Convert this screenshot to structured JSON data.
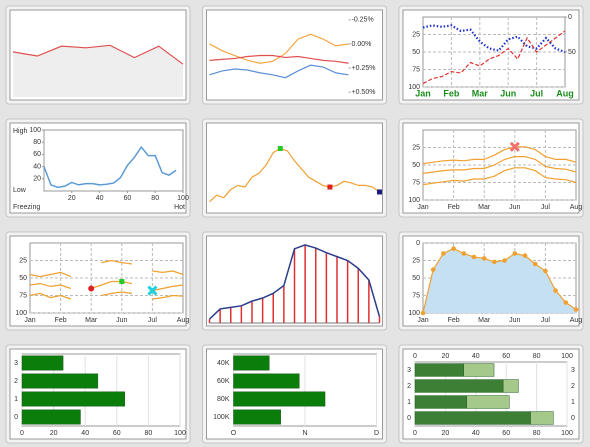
{
  "chart_data": [
    {
      "type": "line",
      "ylim": [
        0,
        100
      ],
      "series": [
        {
          "color": "#e05050",
          "fill": "#eeeeee",
          "values": [
            55,
            50,
            62,
            60,
            63,
            48,
            62,
            40
          ]
        }
      ]
    },
    {
      "type": "line",
      "reversed": true,
      "y2lim": [
        -0.3,
        0.55
      ],
      "y2ticks": [
        {
          "value": -0.25,
          "label": "-0.25%"
        },
        {
          "value": 0,
          "label": "0.00%"
        },
        {
          "value": 0.25,
          "label": "+0.25%"
        },
        {
          "value": 0.5,
          "label": "+0.50%"
        }
      ],
      "series": [
        {
          "color": "#f5a540",
          "axis": "y2",
          "values": [
            0.0,
            0.07,
            0.12,
            0.17,
            0.2,
            0.18,
            0.1,
            -0.05,
            -0.1,
            -0.05,
            0.02,
            0.0
          ]
        },
        {
          "color": "#e05050",
          "axis": "y2",
          "values": [
            0.17,
            0.16,
            0.15,
            0.13,
            0.12,
            0.12,
            0.14,
            0.13,
            0.15,
            0.17,
            0.18,
            0.2
          ]
        },
        {
          "color": "#5b8fd6",
          "axis": "y2",
          "values": [
            0.32,
            0.28,
            0.26,
            0.27,
            0.3,
            0.32,
            0.35,
            0.28,
            0.22,
            0.24,
            0.3,
            0.32
          ]
        }
      ]
    },
    {
      "type": "line",
      "reversed": true,
      "grid": true,
      "label_color": "#1a8c1a",
      "categories": [
        "Jan",
        null,
        null,
        "Feb",
        null,
        null,
        "Mar",
        null,
        null,
        "Jun",
        null,
        null,
        "Jul",
        null,
        null,
        "Aug"
      ],
      "ylim": [
        0,
        100
      ],
      "yticks": [
        25,
        50,
        75,
        100
      ],
      "y2lim": [
        0,
        100
      ],
      "y2ticks": [
        0,
        50
      ],
      "series": [
        {
          "color": "#1f2fd0",
          "dash": "dotted",
          "width": 2.2,
          "values": [
            15,
            12,
            14,
            12,
            20,
            18,
            35,
            45,
            48,
            32,
            28,
            42,
            45,
            30,
            45,
            50
          ]
        },
        {
          "color": "#e03030",
          "dash": "dashed",
          "axis": "y2",
          "values": [
            95,
            88,
            85,
            78,
            80,
            65,
            70,
            60,
            55,
            45,
            60,
            30,
            50,
            40,
            30,
            20
          ]
        }
      ]
    },
    {
      "type": "line",
      "x": [
        0,
        5,
        10,
        15,
        20,
        25,
        30,
        35,
        40,
        45,
        50,
        55,
        60,
        65,
        70,
        75,
        80,
        85,
        90,
        95
      ],
      "xlim": [
        0,
        100
      ],
      "xticks": [
        20,
        40,
        60,
        80,
        100
      ],
      "ylim": [
        0,
        100
      ],
      "yticks": [
        20,
        40,
        60,
        80,
        100
      ],
      "annotations": [
        {
          "text": "High",
          "position": "left-top"
        },
        {
          "text": "Low",
          "position": "left-bottom"
        },
        {
          "text": "Freezing",
          "position": "bottom-left"
        },
        {
          "text": "Hot",
          "position": "bottom-right"
        }
      ],
      "series": [
        {
          "color": "#5b9bd5",
          "width": 1.5,
          "values": [
            40,
            10,
            6,
            8,
            14,
            10,
            12,
            12,
            10,
            11,
            13,
            22,
            42,
            55,
            72,
            58,
            58,
            30,
            26,
            34
          ]
        }
      ]
    },
    {
      "type": "line",
      "ylim": [
        0,
        100
      ],
      "series": [
        {
          "color": "#f0a030",
          "values": [
            10,
            18,
            15,
            25,
            30,
            28,
            40,
            45,
            55,
            70,
            75,
            72,
            60,
            50,
            40,
            35,
            30,
            28,
            30,
            35,
            33,
            30,
            30,
            28,
            22
          ]
        }
      ],
      "markers": [
        {
          "series": 0,
          "index": 10,
          "color": "#22cc22",
          "shape": "square"
        },
        {
          "series": 0,
          "index": 17,
          "color": "#e02020",
          "shape": "square"
        },
        {
          "series": 0,
          "index": 24,
          "color": "#1a1a80",
          "shape": "square"
        }
      ]
    },
    {
      "type": "line",
      "reversed": true,
      "grid": true,
      "categories": [
        "Jan",
        null,
        null,
        "Feb",
        null,
        null,
        "Mar",
        null,
        null,
        "Jun",
        null,
        null,
        "Jul",
        null,
        null,
        "Aug"
      ],
      "ylim": [
        0,
        100
      ],
      "yticks": [
        25,
        50,
        75,
        100
      ],
      "series": [
        {
          "color": "#f0a030",
          "values": [
            48,
            46,
            44,
            43,
            44,
            42,
            42,
            36,
            28,
            24,
            24,
            28,
            38,
            42,
            42,
            46
          ]
        },
        {
          "color": "#f0a030",
          "values": [
            62,
            60,
            58,
            57,
            57,
            55,
            55,
            50,
            42,
            38,
            38,
            42,
            52,
            55,
            56,
            60
          ]
        },
        {
          "color": "#f0a030",
          "values": [
            78,
            76,
            74,
            72,
            73,
            70,
            70,
            66,
            58,
            54,
            54,
            58,
            68,
            70,
            71,
            75
          ]
        }
      ],
      "markers": [
        {
          "series": 0,
          "index": 9,
          "color": "#f07070",
          "shape": "x"
        }
      ]
    },
    {
      "type": "line",
      "reversed": true,
      "grid": true,
      "categories": [
        "Jan",
        null,
        null,
        "Feb",
        null,
        null,
        "Mar",
        null,
        null,
        "Jun",
        null,
        null,
        "Jul",
        null,
        null,
        "Aug"
      ],
      "ylim": [
        0,
        100
      ],
      "yticks": [
        25,
        50,
        75,
        100
      ],
      "series": [
        {
          "color": "#f0a030",
          "values": [
            45,
            48,
            45,
            42,
            48,
            null,
            null,
            28,
            25,
            28,
            30,
            null,
            40,
            42,
            40,
            45
          ]
        },
        {
          "color": "#f0a030",
          "values": [
            60,
            58,
            62,
            60,
            65,
            null,
            65,
            60,
            55,
            55,
            58,
            null,
            68,
            65,
            62,
            60
          ]
        },
        {
          "color": "#f0a030",
          "values": [
            75,
            72,
            78,
            75,
            80,
            null,
            null,
            75,
            72,
            70,
            72,
            null,
            80,
            78,
            75,
            76
          ]
        }
      ],
      "markers": [
        {
          "series": 1,
          "index": 6,
          "color": "#e02020",
          "shape": "circle"
        },
        {
          "series": 1,
          "index": 9,
          "color": "#22cc22",
          "shape": "square"
        },
        {
          "series": 1,
          "index": 12,
          "color": "#20d0e0",
          "shape": "x"
        }
      ]
    },
    {
      "type": "stem",
      "ylim": [
        0,
        105
      ],
      "stem_color": "#e03030",
      "series": [
        {
          "color": "#2c3e8c",
          "width": 1.5,
          "values": [
            5,
            18,
            20,
            22,
            28,
            32,
            38,
            48,
            95,
            100,
            96,
            90,
            85,
            80,
            70,
            55,
            8
          ]
        }
      ]
    },
    {
      "type": "line",
      "reversed": true,
      "grid": true,
      "categories": [
        "Jan",
        null,
        null,
        "Feb",
        null,
        null,
        "Mar",
        null,
        null,
        "Jun",
        null,
        null,
        "Jul",
        null,
        null,
        "Aug"
      ],
      "ylim": [
        0,
        100
      ],
      "yticks": [
        0,
        25,
        50,
        75,
        100
      ],
      "series": [
        {
          "color": "#f0a030",
          "fill": "#c5e0f2",
          "dots": true,
          "values": [
            100,
            38,
            15,
            8,
            15,
            20,
            22,
            27,
            25,
            15,
            18,
            30,
            40,
            68,
            85,
            95
          ]
        }
      ]
    },
    {
      "type": "hbar",
      "categories": [
        "3",
        "2",
        "1",
        "0"
      ],
      "xlim": [
        0,
        100
      ],
      "xticks": [
        0,
        20,
        40,
        60,
        80,
        100
      ],
      "series": [
        {
          "color": "#0a7d0a",
          "values": [
            26,
            48,
            65,
            37
          ]
        }
      ]
    },
    {
      "type": "hbar",
      "categories": [
        "40K",
        "60K",
        "80K",
        "100K"
      ],
      "xlim": [
        0,
        100
      ],
      "xticks": [
        {
          "value": 0,
          "label": "O"
        },
        {
          "value": 50,
          "label": "N"
        },
        {
          "value": 100,
          "label": "D"
        }
      ],
      "series": [
        {
          "color": "#0a7d0a",
          "values": [
            25,
            46,
            64,
            33
          ]
        }
      ]
    },
    {
      "type": "hbar",
      "categories": [
        "3",
        "2",
        "1",
        "0"
      ],
      "xlim": [
        0,
        100
      ],
      "xticks": [
        0,
        20,
        40,
        60,
        80,
        100
      ],
      "xticks_top": true,
      "right_labels": true,
      "series": [
        {
          "color": "#3d7f35",
          "values": [
            32,
            58,
            34,
            76
          ]
        },
        {
          "color": "#a5c98a",
          "values": [
            20,
            10,
            28,
            15
          ]
        }
      ]
    }
  ]
}
